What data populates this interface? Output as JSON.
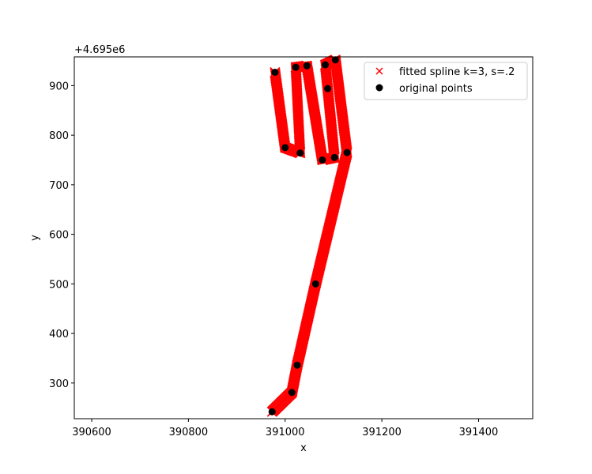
{
  "chart_data": {
    "type": "scatter",
    "xlabel": "x",
    "ylabel": "y",
    "offset_text": "+4.695e6",
    "xlim": [
      390564,
      391512
    ],
    "ylim": [
      228,
      958
    ],
    "x_ticks": [
      390600,
      390800,
      391000,
      391200,
      391400
    ],
    "y_ticks": [
      300,
      400,
      500,
      600,
      700,
      800,
      900
    ],
    "legend_position": "upper right",
    "series": [
      {
        "name": "fitted spline k=3, s=.2",
        "marker": "x",
        "color": "#ff0000",
        "points": [
          [
            390973,
            242
          ],
          [
            391014,
            281
          ],
          [
            391025,
            336
          ],
          [
            391063,
            500
          ],
          [
            391128,
            765
          ],
          [
            391104,
            952
          ],
          [
            391083,
            942
          ],
          [
            391088,
            894
          ],
          [
            391102,
            755
          ],
          [
            391077,
            750
          ],
          [
            391045,
            940
          ],
          [
            391022,
            937
          ],
          [
            391031,
            764
          ],
          [
            391000,
            775
          ],
          [
            390979,
            927
          ]
        ]
      },
      {
        "name": "original points",
        "marker": "o",
        "color": "#000000",
        "points": [
          [
            390973,
            242
          ],
          [
            391014,
            281
          ],
          [
            391025,
            336
          ],
          [
            391063,
            500
          ],
          [
            391128,
            765
          ],
          [
            391104,
            952
          ],
          [
            391083,
            942
          ],
          [
            391088,
            894
          ],
          [
            391102,
            755
          ],
          [
            391077,
            750
          ],
          [
            391045,
            940
          ],
          [
            391022,
            937
          ],
          [
            391031,
            764
          ],
          [
            391000,
            775
          ],
          [
            390979,
            927
          ]
        ]
      }
    ]
  }
}
